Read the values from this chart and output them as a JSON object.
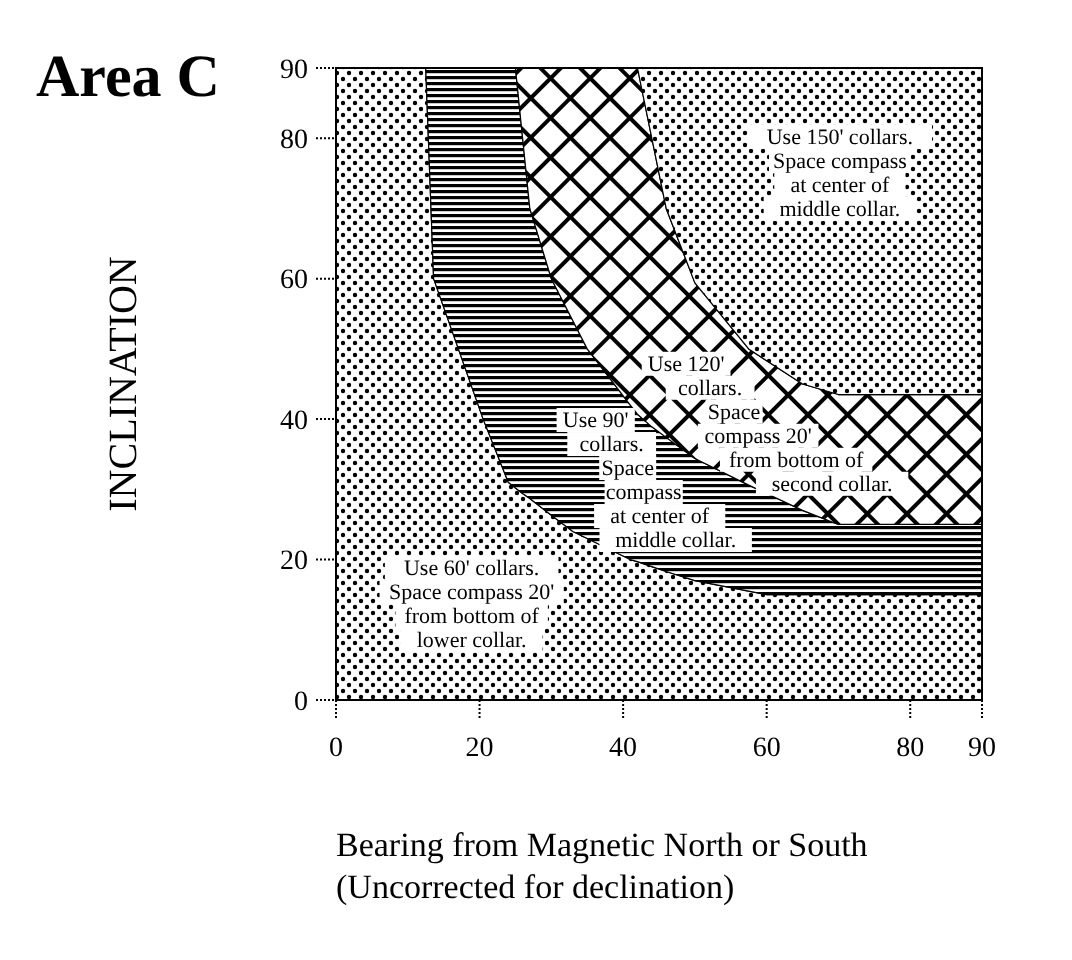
{
  "chart_data": {
    "type": "area",
    "stacked": true,
    "title": "Area C",
    "ylabel": "INCLINATION",
    "xlabel": "Bearing from Magnetic North or South\n(Uncorrected for declination)",
    "xlim": [
      0,
      90
    ],
    "ylim": [
      0,
      90
    ],
    "xticks": [
      0,
      20,
      40,
      60,
      80,
      90
    ],
    "yticks": [
      0,
      20,
      40,
      60,
      80,
      90
    ],
    "x": [
      0,
      12.5,
      13.6,
      20.5,
      24,
      25,
      26,
      27,
      30,
      33,
      35,
      41,
      42,
      44,
      46,
      50,
      57.5,
      60,
      65,
      70,
      80,
      90
    ],
    "series": [
      {
        "color": "#000000",
        "values": [
          90,
          90,
          60,
          40,
          31,
          30.2,
          29.4,
          28.7,
          26.3,
          24,
          23,
          20,
          19.7,
          19,
          18.3,
          17,
          15.5,
          15,
          15,
          15,
          15,
          15
        ]
      },
      {
        "color": "#000000",
        "values": [
          0,
          0,
          30,
          50,
          59,
          59.8,
          50.6,
          41.3,
          33.7,
          30,
          27,
          22,
          21,
          19.9,
          19.1,
          17.4,
          15.1,
          14.4,
          12,
          10,
          10,
          10
        ]
      },
      {
        "color": "#000000",
        "values": [
          0,
          0,
          0,
          0,
          0,
          0,
          10,
          20,
          30,
          36,
          40,
          48,
          49.3,
          41.1,
          32.6,
          25,
          19.4,
          18.9,
          18,
          18.5,
          18.5,
          18.5
        ]
      },
      {
        "color": "#000000",
        "values": [
          0,
          0,
          0,
          0,
          0,
          0,
          0,
          0,
          0,
          0,
          0,
          0,
          0,
          10,
          20,
          30.6,
          40,
          41.7,
          45,
          46.5,
          46.5,
          46.5
        ]
      }
    ],
    "annotations": [
      "Use 150' collars.\nSpace compass\nat center of\nmiddle collar.",
      "Use 120'\ncollars.\nSpace\ncompass 20'\nfrom bottom of\nsecond collar.",
      "Use 90'\ncollars.\nSpace\ncompass\nat center of\nmiddle collar.",
      "Use 60' collars.\nSpace compass 20'\nfrom bottom of\nlower collar."
    ]
  }
}
